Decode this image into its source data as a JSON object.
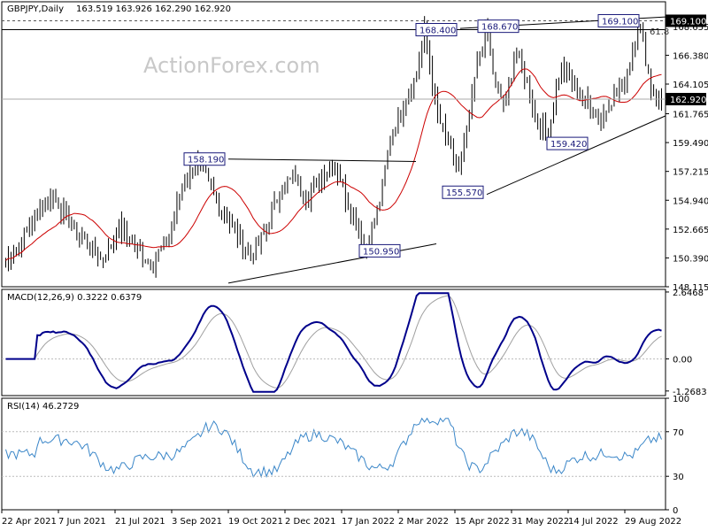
{
  "chart_data": [
    {
      "type": "candlestick",
      "title": "GBPJPY,Daily",
      "ohlc_readout": "163.519 163.926 162.290 162.920",
      "watermark": "ActionForex.com",
      "y_ticks": [
        "169.100",
        "168.655",
        "166.380",
        "164.105",
        "162.920",
        "161.765",
        "159.490",
        "157.215",
        "154.940",
        "152.665",
        "150.390",
        "148.115"
      ],
      "y_tick_values": [
        169.1,
        168.655,
        166.38,
        164.105,
        162.92,
        161.765,
        159.49,
        157.215,
        154.94,
        152.665,
        150.39,
        148.115
      ],
      "ylim": [
        148.115,
        170.6
      ],
      "x_ticks": [
        "22 Apr 2021",
        "7 Jun 2021",
        "21 Jul 2021",
        "3 Sep 2021",
        "19 Oct 2021",
        "2 Dec 2021",
        "17 Jan 2022",
        "2 Mar 2022",
        "15 Apr 2022",
        "31 May 2022",
        "14 Jul 2022",
        "29 Aug 2022"
      ],
      "price_highlight": {
        "value": 162.92,
        "label": "162.920",
        "color": "#000000"
      },
      "top_highlight": {
        "value": 169.1,
        "label": "169.100"
      },
      "annotations": [
        {
          "label": "168.400",
          "value": 168.4
        },
        {
          "label": "168.670",
          "value": 168.67
        },
        {
          "label": "169.100",
          "value": 169.1
        },
        {
          "label": "158.190",
          "value": 158.19
        },
        {
          "label": "150.950",
          "value": 150.95
        },
        {
          "label": "155.570",
          "value": 155.57
        },
        {
          "label": "159.420",
          "value": 159.42
        }
      ],
      "fib_label": "61.8",
      "series_color": "#000000",
      "ma_color": "#cc0000"
    },
    {
      "type": "line",
      "title": "MACD(12,26,9) 0.3222 0.6379",
      "y_ticks": [
        "2.6468",
        "0.00",
        "-1.2683"
      ],
      "y_tick_values": [
        2.6468,
        0.0,
        -1.2683
      ],
      "ylim": [
        -1.45,
        2.75
      ],
      "series": [
        {
          "values_note": "macd",
          "color": "#00008b"
        },
        {
          "values_note": "signal",
          "color": "#a0a0a0"
        }
      ]
    },
    {
      "type": "line",
      "title": "RSI(14) 46.2729",
      "y_ticks": [
        "100",
        "70",
        "30",
        "0"
      ],
      "y_tick_values": [
        100,
        70,
        30,
        0
      ],
      "ylim": [
        0,
        100
      ],
      "series": [
        {
          "values_note": "rsi",
          "color": "#3a86c8"
        }
      ]
    }
  ]
}
